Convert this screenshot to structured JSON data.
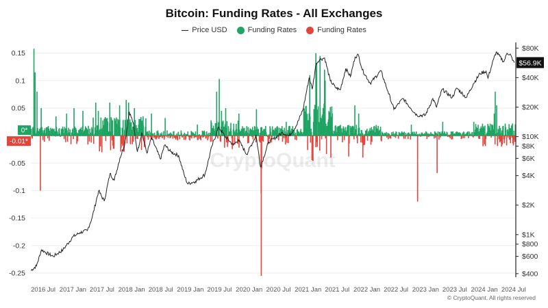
{
  "chart_data": {
    "type": "bar",
    "title": "Bitcoin: Funding Rates - All Exchanges",
    "legend": {
      "position": "top-center",
      "items": [
        {
          "name": "Price USD",
          "marker": "line",
          "color": "#222222"
        },
        {
          "name": "Funding Rates",
          "marker": "dot",
          "color": "#1fa463"
        },
        {
          "name": "Funding Rates",
          "marker": "dot",
          "color": "#e5443b"
        }
      ]
    },
    "y_left": {
      "ticks": [
        0.15,
        0.1,
        0.05,
        0,
        -0.05,
        -0.1,
        -0.15,
        -0.2,
        -0.25
      ],
      "tick_labels": [
        "0.15",
        "0.1",
        "0.05",
        "",
        "-0.05",
        "-0.1",
        "-0.15",
        "-0.2",
        "-0.25"
      ],
      "ylim": [
        -0.255,
        0.162
      ]
    },
    "y_right": {
      "scale": "log",
      "ticks": [
        80000,
        40000,
        20000,
        10000,
        8000,
        6000,
        4000,
        2000,
        1000,
        800,
        600,
        400
      ],
      "tick_labels": [
        "$80K",
        "$40K",
        "$20K",
        "$10K",
        "$8K",
        "$6K",
        "$4K",
        "$2K",
        "$1K",
        "$800",
        "$600",
        "$400"
      ],
      "ylim": [
        380,
        83000
      ]
    },
    "x_axis": {
      "range": [
        "2016-04-15",
        "2024-07-10"
      ],
      "ticks": [
        {
          "label": "2016 Jul",
          "date": "2016-07-01"
        },
        {
          "label": "2017 Jan",
          "date": "2017-01-01"
        },
        {
          "label": "2017 Jul",
          "date": "2017-07-01"
        },
        {
          "label": "2018 Jan",
          "date": "2018-01-01"
        },
        {
          "label": "2018 Jul",
          "date": "2018-07-01"
        },
        {
          "label": "2019 Jan",
          "date": "2019-01-01"
        },
        {
          "label": "2019 Jul",
          "date": "2019-07-01"
        },
        {
          "label": "2020 Jan",
          "date": "2020-01-01"
        },
        {
          "label": "2020 Jul",
          "date": "2020-07-01"
        },
        {
          "label": "2021 Jan",
          "date": "2021-01-01"
        },
        {
          "label": "2021 Jul",
          "date": "2021-07-01"
        },
        {
          "label": "2022 Jan",
          "date": "2022-01-01"
        },
        {
          "label": "2022 Jul",
          "date": "2022-07-01"
        },
        {
          "label": "2023 Jan",
          "date": "2023-01-01"
        },
        {
          "label": "2023 Jul",
          "date": "2023-07-01"
        },
        {
          "label": "2024 Jan",
          "date": "2024-01-01"
        },
        {
          "label": "2024 Jul",
          "date": "2024-07-01"
        }
      ]
    },
    "grid": {
      "horizontal": true,
      "vertical": false
    },
    "current_labels": {
      "price": "$56.9K",
      "rate_positive": "0*",
      "rate_negative": "-0.01*"
    },
    "series": [
      {
        "name": "Price USD",
        "axis": "right",
        "render": "line",
        "color": "#222222",
        "points": [
          [
            "2016-04-15",
            430
          ],
          [
            "2016-05-20",
            480
          ],
          [
            "2016-06-20",
            700
          ],
          [
            "2016-07-15",
            660
          ],
          [
            "2016-09-01",
            600
          ],
          [
            "2016-11-01",
            700
          ],
          [
            "2017-01-01",
            950
          ],
          [
            "2017-02-15",
            1050
          ],
          [
            "2017-04-01",
            1100
          ],
          [
            "2017-05-01",
            1500
          ],
          [
            "2017-06-10",
            2800
          ],
          [
            "2017-07-15",
            2200
          ],
          [
            "2017-08-20",
            4200
          ],
          [
            "2017-09-15",
            3600
          ],
          [
            "2017-10-20",
            6000
          ],
          [
            "2017-11-20",
            8500
          ],
          [
            "2017-12-17",
            18000
          ],
          [
            "2018-01-10",
            14000
          ],
          [
            "2018-02-06",
            7000
          ],
          [
            "2018-03-05",
            11000
          ],
          [
            "2018-04-06",
            6800
          ],
          [
            "2018-05-05",
            9700
          ],
          [
            "2018-06-29",
            5900
          ],
          [
            "2018-07-25",
            8200
          ],
          [
            "2018-09-01",
            7000
          ],
          [
            "2018-10-20",
            6400
          ],
          [
            "2018-11-25",
            4000
          ],
          [
            "2018-12-15",
            3300
          ],
          [
            "2019-02-01",
            3500
          ],
          [
            "2019-04-01",
            4100
          ],
          [
            "2019-05-15",
            8000
          ],
          [
            "2019-06-26",
            12500
          ],
          [
            "2019-08-01",
            10200
          ],
          [
            "2019-09-25",
            8200
          ],
          [
            "2019-10-26",
            9300
          ],
          [
            "2019-12-17",
            6600
          ],
          [
            "2020-02-13",
            10300
          ],
          [
            "2020-03-12",
            4900
          ],
          [
            "2020-05-01",
            8800
          ],
          [
            "2020-06-01",
            9500
          ],
          [
            "2020-07-27",
            11000
          ],
          [
            "2020-09-05",
            10200
          ],
          [
            "2020-10-21",
            13000
          ],
          [
            "2020-12-01",
            19000
          ],
          [
            "2021-01-08",
            40000
          ],
          [
            "2021-01-27",
            30500
          ],
          [
            "2021-02-20",
            56000
          ],
          [
            "2021-03-13",
            61000
          ],
          [
            "2021-04-14",
            63500
          ],
          [
            "2021-05-19",
            37000
          ],
          [
            "2021-06-22",
            31500
          ],
          [
            "2021-07-20",
            30000
          ],
          [
            "2021-08-23",
            49500
          ],
          [
            "2021-09-21",
            41000
          ],
          [
            "2021-10-20",
            65000
          ],
          [
            "2021-11-10",
            68000
          ],
          [
            "2021-12-04",
            48000
          ],
          [
            "2022-01-22",
            35000
          ],
          [
            "2022-03-29",
            47000
          ],
          [
            "2022-05-12",
            29000
          ],
          [
            "2022-06-18",
            19000
          ],
          [
            "2022-08-14",
            24500
          ],
          [
            "2022-10-01",
            19500
          ],
          [
            "2022-11-09",
            16500
          ],
          [
            "2022-12-30",
            16500
          ],
          [
            "2023-02-15",
            24500
          ],
          [
            "2023-03-10",
            20000
          ],
          [
            "2023-04-14",
            30500
          ],
          [
            "2023-06-15",
            25000
          ],
          [
            "2023-07-14",
            31300
          ],
          [
            "2023-09-11",
            25000
          ],
          [
            "2023-10-24",
            34500
          ],
          [
            "2023-12-05",
            44000
          ],
          [
            "2024-01-11",
            46500
          ],
          [
            "2024-01-23",
            39500
          ],
          [
            "2024-02-28",
            62000
          ],
          [
            "2024-03-14",
            73000
          ],
          [
            "2024-05-01",
            58000
          ],
          [
            "2024-05-21",
            71000
          ],
          [
            "2024-06-10",
            69500
          ],
          [
            "2024-06-24",
            60000
          ],
          [
            "2024-07-05",
            56900
          ]
        ]
      },
      {
        "name": "Funding Rates",
        "axis": "left",
        "render": "bar",
        "color_positive": "#1fa463",
        "color_negative": "#e5443b",
        "spikes": [
          [
            "2016-05-01",
            0.158
          ],
          [
            "2016-05-08",
            0.115
          ],
          [
            "2016-05-20",
            0.08
          ],
          [
            "2016-06-15",
            0.05
          ],
          [
            "2016-06-10",
            -0.1
          ],
          [
            "2016-09-15",
            0.035
          ],
          [
            "2016-11-20",
            0.04
          ],
          [
            "2017-01-05",
            0.05
          ],
          [
            "2017-03-01",
            0.045
          ],
          [
            "2017-05-20",
            0.06
          ],
          [
            "2017-06-05",
            0.045
          ],
          [
            "2017-08-15",
            0.06
          ],
          [
            "2017-10-15",
            0.055
          ],
          [
            "2017-11-25",
            0.065
          ],
          [
            "2017-12-10",
            0.06
          ],
          [
            "2018-01-15",
            0.05
          ],
          [
            "2018-03-10",
            0.035
          ],
          [
            "2018-05-01",
            0.04
          ],
          [
            "2018-07-25",
            0.032
          ],
          [
            "2019-02-10",
            0.02
          ],
          [
            "2019-06-10",
            0.08
          ],
          [
            "2019-06-26",
            0.103
          ],
          [
            "2019-07-10",
            0.045
          ],
          [
            "2019-08-05",
            0.05
          ],
          [
            "2019-10-26",
            0.04
          ],
          [
            "2020-02-12",
            0.048
          ],
          [
            "2020-03-12",
            -0.105
          ],
          [
            "2020-03-13",
            -0.255
          ],
          [
            "2020-03-15",
            -0.06
          ],
          [
            "2020-08-15",
            0.025
          ],
          [
            "2021-01-08",
            0.11
          ],
          [
            "2021-02-15",
            0.15
          ],
          [
            "2021-02-20",
            0.13
          ],
          [
            "2021-03-13",
            0.145
          ],
          [
            "2021-04-10",
            0.12
          ],
          [
            "2021-04-14",
            0.1
          ],
          [
            "2021-05-19",
            -0.04
          ],
          [
            "2021-09-07",
            -0.038
          ],
          [
            "2021-10-15",
            0.055
          ],
          [
            "2021-11-08",
            0.04
          ],
          [
            "2021-12-04",
            -0.04
          ],
          [
            "2022-10-01",
            0.02
          ],
          [
            "2022-11-09",
            -0.12
          ],
          [
            "2023-03-10",
            -0.068
          ],
          [
            "2023-04-14",
            0.025
          ],
          [
            "2023-10-24",
            0.025
          ],
          [
            "2024-02-28",
            0.04
          ],
          [
            "2024-03-05",
            0.08
          ],
          [
            "2024-03-14",
            0.055
          ],
          [
            "2024-04-13",
            -0.02
          ],
          [
            "2024-06-24",
            -0.01
          ]
        ]
      }
    ]
  }
}
